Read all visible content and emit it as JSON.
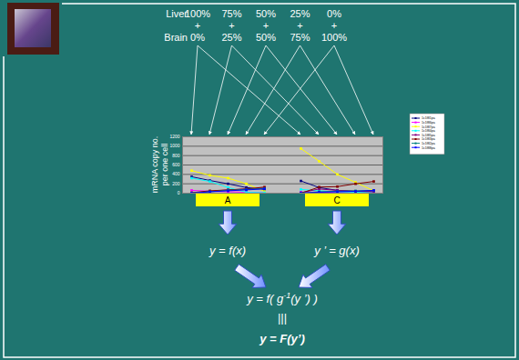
{
  "chart_data": {
    "type": "line",
    "y_label": [
      "mRNA copy no.",
      "per one cell"
    ],
    "categories": [
      "A",
      "C"
    ],
    "ylim": [
      0,
      1200
    ],
    "yticks": [
      0,
      200,
      400,
      600,
      800,
      1000,
      1200
    ],
    "grid": true,
    "marker": "square",
    "legend": "right",
    "series": [
      {
        "name": "1c1f81pa",
        "color": "#000080",
        "values": [
          [
            350,
            270,
            200,
            120,
            80
          ],
          [
            260,
            120,
            60,
            40,
            30
          ]
        ]
      },
      {
        "name": "1c1f86pa",
        "color": "#ff00ff",
        "values": [
          [
            60,
            40,
            30,
            20,
            10
          ],
          [
            20,
            20,
            15,
            10,
            10
          ]
        ]
      },
      {
        "name": "1c1f87pa",
        "color": "#ffff00",
        "values": [
          [
            480,
            380,
            320,
            200,
            40
          ],
          [
            950,
            680,
            400,
            230,
            50
          ]
        ]
      },
      {
        "name": "1c1f84pa",
        "color": "#00ffff",
        "values": [
          [
            320,
            250,
            120,
            20,
            10
          ],
          [
            80,
            50,
            30,
            20,
            10
          ]
        ]
      },
      {
        "name": "1c1f85pa",
        "color": "#800080",
        "values": [
          [
            0,
            40,
            70,
            90,
            110
          ],
          [
            10,
            90,
            60,
            40,
            30
          ]
        ]
      },
      {
        "name": "1c1f83pa",
        "color": "#800000",
        "values": [
          [
            10,
            50,
            70,
            90,
            130
          ],
          [
            0,
            130,
            140,
            200,
            250
          ]
        ]
      },
      {
        "name": "1c1f82pa",
        "color": "#008080",
        "values": [
          [
            0,
            30,
            60,
            80,
            100
          ],
          [
            0,
            30,
            40,
            50,
            60
          ]
        ]
      },
      {
        "name": "1c1f88pa",
        "color": "#0000ff",
        "values": [
          [
            0,
            30,
            50,
            70,
            90
          ],
          [
            0,
            20,
            30,
            40,
            60
          ]
        ]
      }
    ]
  },
  "mixtures": {
    "liver_label": "Liver",
    "liver": [
      "100%",
      "75%",
      "50%",
      "25%",
      "0%"
    ],
    "plus": "+",
    "brain_label": "Brain",
    "brain": [
      "0%",
      "25%",
      "50%",
      "75%",
      "100%"
    ]
  },
  "flow": {
    "left": "y = f(x)",
    "right": "y ’ = g(x)",
    "combined": {
      "before": "y = f( g",
      "sup": "-1",
      "after": "(y ’) )"
    },
    "equiv": "|||",
    "result": "y = F(y’)"
  }
}
